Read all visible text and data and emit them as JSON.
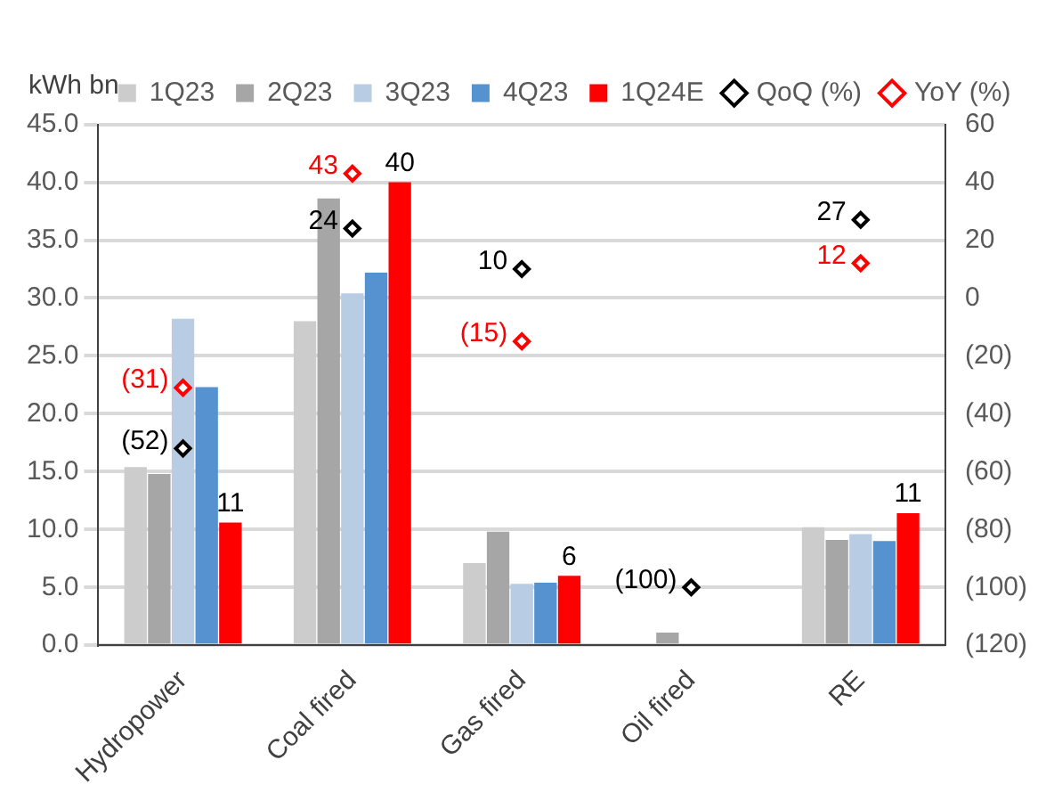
{
  "chart_data": {
    "type": "bar",
    "ylabel": "kWh bn",
    "categories": [
      "Hydropower",
      "Coal fired",
      "Gas fired",
      "Oil fired",
      "RE"
    ],
    "series": [
      {
        "name": "1Q23",
        "color": "#cccccc",
        "values": [
          15.4,
          28.0,
          7.1,
          0,
          10.2
        ]
      },
      {
        "name": "2Q23",
        "color": "#a6a6a6",
        "values": [
          14.8,
          38.6,
          9.8,
          1.1,
          9.1
        ]
      },
      {
        "name": "3Q23",
        "color": "#b8cce4",
        "values": [
          28.2,
          30.4,
          5.3,
          null,
          9.6
        ]
      },
      {
        "name": "4Q23",
        "color": "#5592cf",
        "values": [
          22.3,
          32.2,
          5.4,
          null,
          9.0
        ]
      },
      {
        "name": "1Q24E",
        "color": "#ff0000",
        "values": [
          10.6,
          40.0,
          6.0,
          0,
          11.4
        ],
        "value_labels": [
          "11",
          "40",
          "6",
          null,
          "11"
        ]
      },
      {
        "name": "QoQ (%)",
        "type": "scatter",
        "axis": "y2",
        "color": "#000000",
        "x": [
          "Hydropower",
          "Coal fired",
          "Gas fired",
          "Oil fired",
          "RE"
        ],
        "values": [
          -52,
          24,
          10,
          -100,
          27
        ],
        "value_labels": [
          "(52)",
          "24",
          "10",
          "(100)",
          "27"
        ]
      },
      {
        "name": "YoY (%)",
        "type": "scatter",
        "axis": "y2",
        "color": "#ff0000",
        "x": [
          "Hydropower",
          "Coal fired",
          "Gas fired",
          "Oil fired",
          "RE"
        ],
        "values": [
          -31,
          43,
          -15,
          null,
          12
        ],
        "value_labels": [
          "(31)",
          "43",
          "(15)",
          null,
          "12"
        ]
      }
    ],
    "ylim": [
      0,
      45
    ],
    "yticks": [
      {
        "value": 0,
        "label": "0.0"
      },
      {
        "value": 5,
        "label": "5.0"
      },
      {
        "value": 10,
        "label": "10.0"
      },
      {
        "value": 15,
        "label": "15.0"
      },
      {
        "value": 20,
        "label": "20.0"
      },
      {
        "value": 25,
        "label": "25.0"
      },
      {
        "value": 30,
        "label": "30.0"
      },
      {
        "value": 35,
        "label": "35.0"
      },
      {
        "value": 40,
        "label": "40.0"
      },
      {
        "value": 45,
        "label": "45.0"
      }
    ],
    "y2lim": [
      -120,
      60
    ],
    "y2ticks": [
      {
        "value": -120,
        "label": "(120)"
      },
      {
        "value": -100,
        "label": "(100)"
      },
      {
        "value": -80,
        "label": "(80)"
      },
      {
        "value": -60,
        "label": "(60)"
      },
      {
        "value": -40,
        "label": "(40)"
      },
      {
        "value": -20,
        "label": "(20)"
      },
      0,
      20,
      40,
      60
    ],
    "grid": "y",
    "legend": "top",
    "marker": "diamond"
  }
}
